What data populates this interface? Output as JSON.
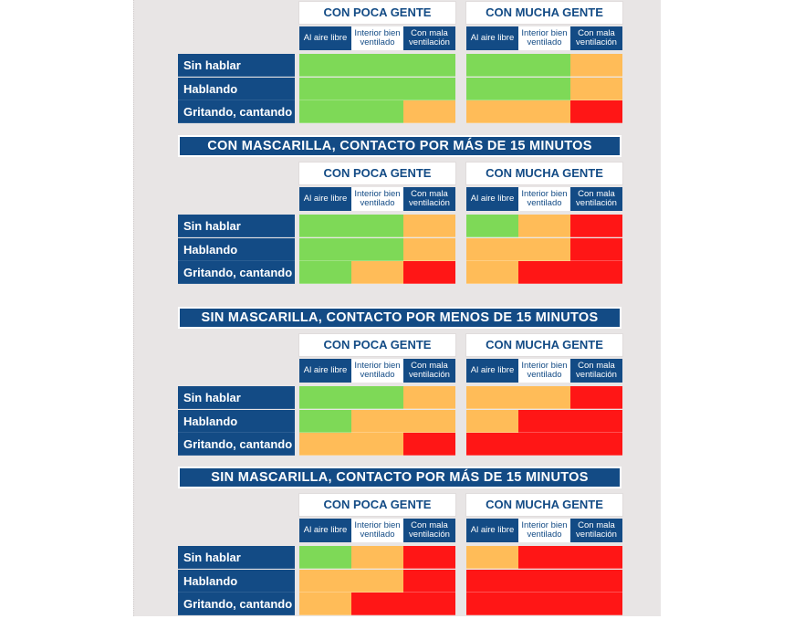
{
  "colors": {
    "green": "#7ed957",
    "orange": "#ffbc58",
    "red": "#ff1616",
    "navy": "#134b85",
    "panel": "#e8e5e5"
  },
  "groups": [
    "CON POCA GENTE",
    "CON MUCHA GENTE"
  ],
  "subheaders": [
    "Al aire libre",
    "Interior bien ventilado",
    "Con mala ventilación"
  ],
  "rows": [
    "Sin hablar",
    "Hablando",
    "Gritando, cantando"
  ],
  "sections": [
    {
      "title": "",
      "poca": [
        [
          "green",
          "green",
          "green"
        ],
        [
          "green",
          "green",
          "green"
        ],
        [
          "green",
          "green",
          "orange"
        ]
      ],
      "mucha": [
        [
          "green",
          "green",
          "orange"
        ],
        [
          "green",
          "green",
          "orange"
        ],
        [
          "orange",
          "orange",
          "red"
        ]
      ]
    },
    {
      "title": "CON MASCARILLA, CONTACTO POR MÁS DE 15 MINUTOS",
      "poca": [
        [
          "green",
          "green",
          "orange"
        ],
        [
          "green",
          "green",
          "orange"
        ],
        [
          "green",
          "orange",
          "red"
        ]
      ],
      "mucha": [
        [
          "green",
          "orange",
          "red"
        ],
        [
          "orange",
          "orange",
          "red"
        ],
        [
          "orange",
          "red",
          "red"
        ]
      ]
    },
    {
      "title": "SIN MASCARILLA, CONTACTO POR MENOS DE 15 MINUTOS",
      "poca": [
        [
          "green",
          "green",
          "orange"
        ],
        [
          "green",
          "orange",
          "orange"
        ],
        [
          "orange",
          "orange",
          "red"
        ]
      ],
      "mucha": [
        [
          "orange",
          "orange",
          "red"
        ],
        [
          "orange",
          "red",
          "red"
        ],
        [
          "red",
          "red",
          "red"
        ]
      ]
    },
    {
      "title": "SIN MASCARILLA, CONTACTO POR MÁS DE 15 MINUTOS",
      "poca": [
        [
          "green",
          "orange",
          "red"
        ],
        [
          "orange",
          "orange",
          "red"
        ],
        [
          "orange",
          "red",
          "red"
        ]
      ],
      "mucha": [
        [
          "orange",
          "red",
          "red"
        ],
        [
          "red",
          "red",
          "red"
        ],
        [
          "red",
          "red",
          "red"
        ]
      ]
    }
  ]
}
